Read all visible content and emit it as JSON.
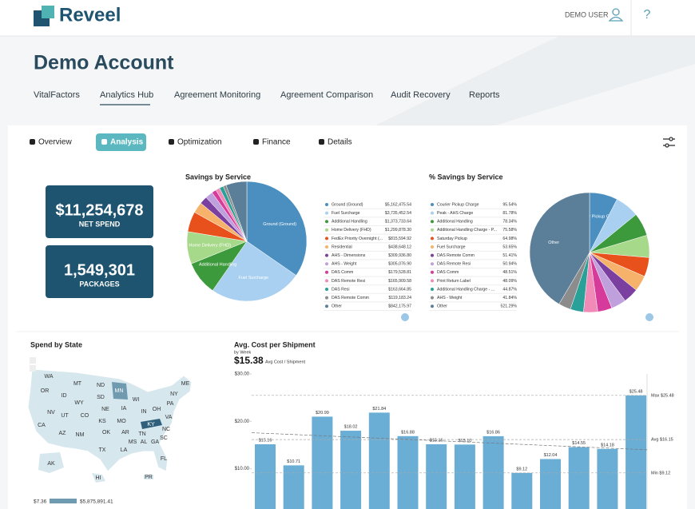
{
  "header": {
    "logo": "Reveel",
    "user": "DEMO USER",
    "help": "?"
  },
  "account_title": "Demo Account",
  "nav": [
    "VitalFactors",
    "Analytics Hub",
    "Agreement Monitoring",
    "Agreement Comparison",
    "Audit Recovery",
    "Reports"
  ],
  "tabs": [
    "Overview",
    "Analysis",
    "Optimization",
    "Finance",
    "Details"
  ],
  "kpis": [
    {
      "value": "$11,254,678",
      "label": "NET SPEND"
    },
    {
      "value": "1,549,301",
      "label": "PACKAGES"
    }
  ],
  "map": {
    "title": "Spend by State",
    "states": [
      "WA",
      "MT",
      "ND",
      "OR",
      "ID",
      "MN",
      "SD",
      "WY",
      "WI",
      "NE",
      "IA",
      "NV",
      "UT",
      "CO",
      "KS",
      "MO",
      "IN",
      "OH",
      "KY",
      "VA",
      "NC",
      "CA",
      "AZ",
      "NM",
      "OK",
      "AR",
      "TN",
      "TX",
      "LA",
      "MS",
      "AL",
      "GA",
      "SC",
      "FL",
      "NY",
      "PA",
      "ME",
      "AK",
      "HI",
      "PR"
    ],
    "legend_min": "$7.36",
    "legend_max": "$5,875,891.41"
  },
  "chart_data": [
    {
      "type": "pie",
      "title": "Savings by Service",
      "categories": [
        "Ground (Ground)",
        "Fuel Surcharge",
        "Additional Handling",
        "Home Delivery (FHD)",
        "FedEx Priority Overnight (...",
        "Residential",
        "AHS - Dimensions",
        "AHS - Weight",
        "DAS Comm",
        "DAS Remote Resi",
        "DAS Resi",
        "DAS Remote Comm",
        "Other"
      ],
      "values": [
        5162475.54,
        3735452.54,
        1373733.64,
        1299878.3,
        815594.92,
        438648.12,
        309936.8,
        305076.9,
        179528.81,
        165909.58,
        163664.85,
        119183.24,
        842175.97
      ],
      "value_labels": [
        "$5,162,475.54",
        "$3,735,452.54",
        "$1,373,733.64",
        "$1,299,878.30",
        "$815,594.92",
        "$438,648.12",
        "$309,936.80",
        "$305,076.90",
        "$179,528.81",
        "$165,909.58",
        "$163,664.85",
        "$119,183.24",
        "$842,175.97"
      ],
      "colors": [
        "#4a8fc0",
        "#a9d0f0",
        "#3c9a3c",
        "#a7d98a",
        "#e8501c",
        "#f6b26b",
        "#7b3fa0",
        "#c0a0dc",
        "#d63a9a",
        "#f28ab8",
        "#2aa198",
        "#8c8c8c",
        "#5b7f99"
      ]
    },
    {
      "type": "pie",
      "title": "% Savings by Service",
      "categories": [
        "Courier Pickup Charge",
        "Peak - AHS Charge",
        "Additional Handling",
        "Additional Handling Charge - P...",
        "Saturday Pickup",
        "Fuel Surcharge",
        "DAS Remote Comm",
        "DAS Remote Resi",
        "DAS Comm",
        "Print Return Label",
        "Additional Handling Charge - ...",
        "AHS - Weight",
        "Other"
      ],
      "values": [
        95.54,
        81.78,
        78.34,
        75.58,
        64.98,
        53.65,
        51.41,
        50.94,
        48.51,
        48.09,
        44.87,
        41.84,
        521.29
      ],
      "value_labels": [
        "95.54%",
        "81.78%",
        "78.34%",
        "75.58%",
        "64.98%",
        "53.65%",
        "51.41%",
        "50.94%",
        "48.51%",
        "48.09%",
        "44.87%",
        "41.84%",
        "521.29%"
      ],
      "colors": [
        "#4a8fc0",
        "#a9d0f0",
        "#3c9a3c",
        "#a7d98a",
        "#e8501c",
        "#f6b26b",
        "#7b3fa0",
        "#c0a0dc",
        "#d63a9a",
        "#f28ab8",
        "#2aa198",
        "#8c8c8c",
        "#5b7f99"
      ]
    },
    {
      "type": "bar",
      "title": "Avg. Cost per Shipment",
      "subtitle": "by Week",
      "headline": "$15.38",
      "headline_label": "Avg Cost / Shipment",
      "categories": [
        null,
        null,
        null,
        null,
        null,
        null,
        null,
        null,
        null,
        null,
        null,
        null,
        null,
        null
      ],
      "values": [
        15.16,
        10.71,
        20.99,
        18.02,
        21.84,
        16.88,
        15.16,
        15.1,
        16.86,
        9.12,
        12.04,
        14.55,
        14.18,
        25.48
      ],
      "value_labels": [
        "$15.16",
        "$10.71",
        "$20.99",
        "$18.02",
        "$21.84",
        "$16.88",
        "$15.16",
        "$15.10",
        "$16.86",
        "$9.12",
        "$12.04",
        "$14.55",
        "$14.18",
        "$25.48"
      ],
      "color": "#6aaed6",
      "ylim": [
        1.5,
        30
      ],
      "yticks": [
        {
          "value": 10,
          "label": "$10.00"
        },
        {
          "value": 20,
          "label": "$20.00"
        },
        {
          "value": 30,
          "label": "$30.00"
        }
      ],
      "reference_lines": [
        {
          "label": "Max $25.48",
          "value": 25.48
        },
        {
          "label": "Avg $16.15",
          "value": 16.15
        },
        {
          "label": "Min $9.12",
          "value": 9.12
        }
      ],
      "trend_line": {
        "start": 17.6,
        "end": 14.0
      }
    }
  ]
}
